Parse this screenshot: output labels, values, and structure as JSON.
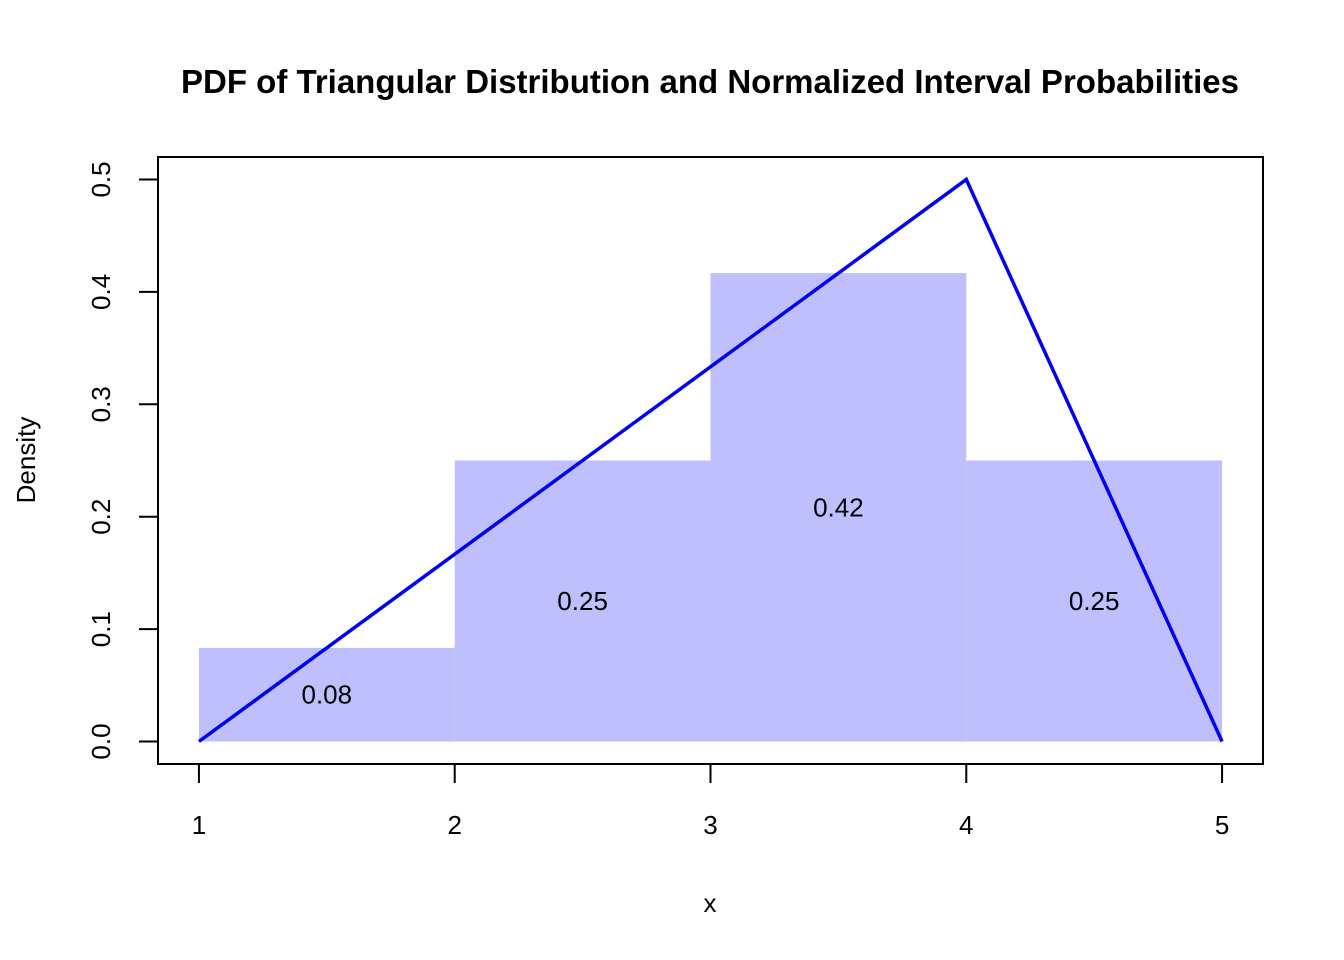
{
  "chart_data": {
    "type": "bar",
    "title": "PDF of Triangular Distribution and Normalized Interval Probabilities",
    "xlabel": "x",
    "ylabel": "Density",
    "xlim": [
      0.84,
      5.16
    ],
    "ylim": [
      -0.02,
      0.52
    ],
    "x_ticks": [
      "1",
      "2",
      "3",
      "4",
      "5"
    ],
    "y_ticks": [
      "0.0",
      "0.1",
      "0.2",
      "0.3",
      "0.4",
      "0.5"
    ],
    "grid": false,
    "legend": "none",
    "bars": [
      {
        "x_start": 1,
        "x_end": 2,
        "density": 0.0833,
        "label": "0.08"
      },
      {
        "x_start": 2,
        "x_end": 3,
        "density": 0.25,
        "label": "0.25"
      },
      {
        "x_start": 3,
        "x_end": 4,
        "density": 0.4167,
        "label": "0.42"
      },
      {
        "x_start": 4,
        "x_end": 5,
        "density": 0.25,
        "label": "0.25"
      }
    ],
    "pdf_line": {
      "x": [
        1,
        4,
        5
      ],
      "y": [
        0,
        0.5,
        0
      ]
    },
    "colors": {
      "bar_fill": "#bfbffe",
      "line": "#0000ee",
      "axes": "#000000"
    }
  }
}
